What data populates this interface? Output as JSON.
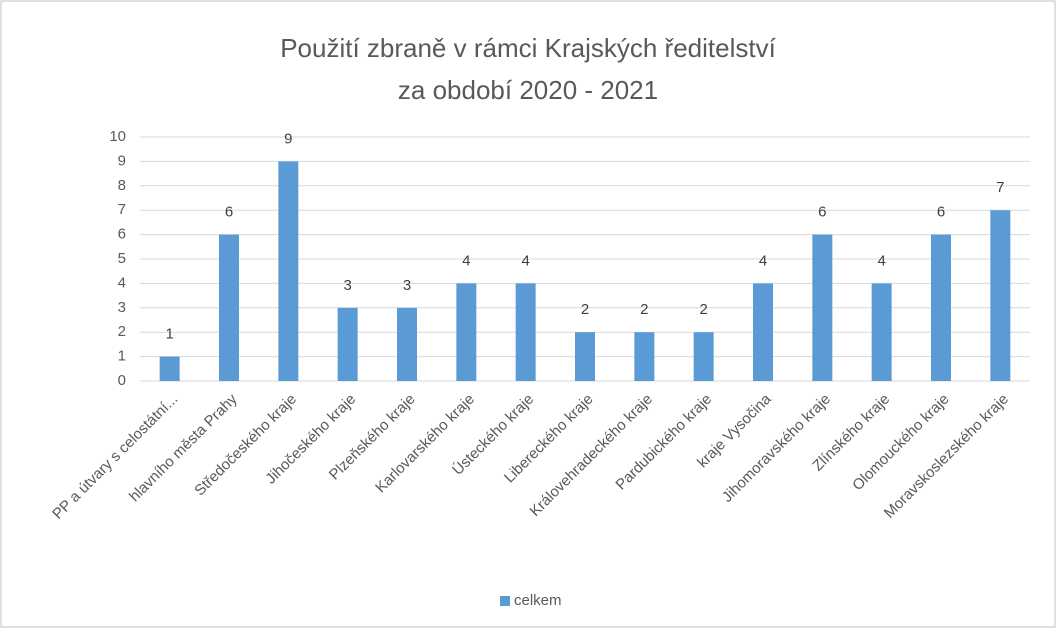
{
  "chart_data": {
    "type": "bar",
    "title": [
      "Použití zbraně v rámci Krajských ředitelství",
      "za období 2020 - 2021"
    ],
    "categories": [
      "PP a útvary s celostátní...",
      "hlavního města Prahy",
      "Středočeského kraje",
      "Jihočeského kraje",
      "Plzeňského kraje",
      "Karlovarského kraje",
      "Ústeckého kraje",
      "Libereckého kraje",
      "Královehradeckého kraje",
      "Pardubického kraje",
      "kraje Vysočina",
      "Jihomoravského kraje",
      "Zlínského kraje",
      "Olomouckého kraje",
      "Moravskoslezského kraje"
    ],
    "series": [
      {
        "name": "celkem",
        "color": "#5b9bd5",
        "values": [
          1,
          6,
          9,
          3,
          3,
          4,
          4,
          2,
          2,
          2,
          4,
          6,
          4,
          6,
          7
        ]
      }
    ],
    "ylim": [
      0,
      10
    ],
    "yticks": [
      0,
      1,
      2,
      3,
      4,
      5,
      6,
      7,
      8,
      9,
      10
    ],
    "grid": true,
    "legend": "bottom"
  }
}
